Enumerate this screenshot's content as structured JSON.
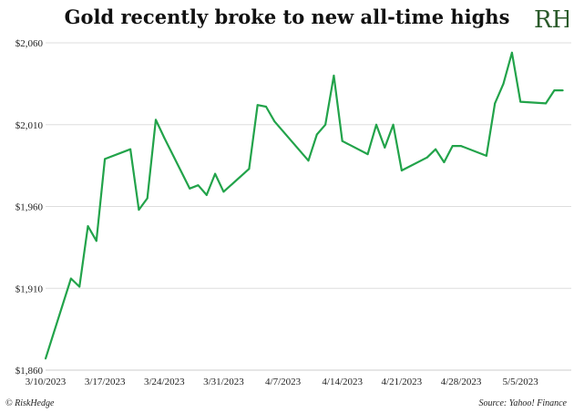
{
  "title": "Gold recently broke to new all-time highs",
  "logo_text": "RH",
  "footer": {
    "left": "© RiskHedge",
    "right": "Source: Yahoo! Finance"
  },
  "colors": {
    "line": "#22a34a",
    "grid": "#dddddd",
    "logo": "#2a5a2a"
  },
  "chart_data": {
    "type": "line",
    "title": "Gold recently broke to new all-time highs",
    "xlabel": "",
    "ylabel": "",
    "ylim": [
      1860,
      2060
    ],
    "yticks": [
      1860,
      1910,
      1960,
      2010,
      2060
    ],
    "ytick_labels": [
      "$1,860",
      "$1,910",
      "$1,960",
      "$2,010",
      "$2,060"
    ],
    "xticks": [
      "2023-03-10",
      "2023-03-17",
      "2023-03-24",
      "2023-03-31",
      "2023-04-07",
      "2023-04-14",
      "2023-04-21",
      "2023-04-28",
      "2023-05-05"
    ],
    "xtick_labels": [
      "3/10/2023",
      "3/17/2023",
      "3/24/2023",
      "3/31/2023",
      "4/7/2023",
      "4/14/2023",
      "4/21/2023",
      "4/28/2023",
      "5/5/2023"
    ],
    "xlim": [
      "2023-03-10",
      "2023-05-11"
    ],
    "grid": "horizontal",
    "legend": "none",
    "series": [
      {
        "x": [
          "2023-03-10",
          "2023-03-13",
          "2023-03-14",
          "2023-03-15",
          "2023-03-16",
          "2023-03-17",
          "2023-03-20",
          "2023-03-21",
          "2023-03-22",
          "2023-03-23",
          "2023-03-24",
          "2023-03-27",
          "2023-03-28",
          "2023-03-29",
          "2023-03-30",
          "2023-03-31",
          "2023-04-03",
          "2023-04-04",
          "2023-04-05",
          "2023-04-06",
          "2023-04-10",
          "2023-04-11",
          "2023-04-12",
          "2023-04-13",
          "2023-04-14",
          "2023-04-17",
          "2023-04-18",
          "2023-04-19",
          "2023-04-20",
          "2023-04-21",
          "2023-04-24",
          "2023-04-25",
          "2023-04-26",
          "2023-04-27",
          "2023-04-28",
          "2023-05-01",
          "2023-05-02",
          "2023-05-03",
          "2023-05-04",
          "2023-05-05",
          "2023-05-08",
          "2023-05-09",
          "2023-05-10"
        ],
        "values": [
          1867,
          1916,
          1911,
          1948,
          1939,
          1989,
          1995,
          1958,
          1965,
          2013,
          2002,
          1971,
          1973,
          1967,
          1980,
          1969,
          1983,
          2022,
          2021,
          2012,
          1988,
          2004,
          2010,
          2040,
          2000,
          1992,
          2010,
          1996,
          2010,
          1982,
          1990,
          1995,
          1987,
          1997,
          1997,
          1991,
          2023,
          2035,
          2054,
          2024,
          2023,
          2031,
          2031
        ]
      }
    ]
  }
}
